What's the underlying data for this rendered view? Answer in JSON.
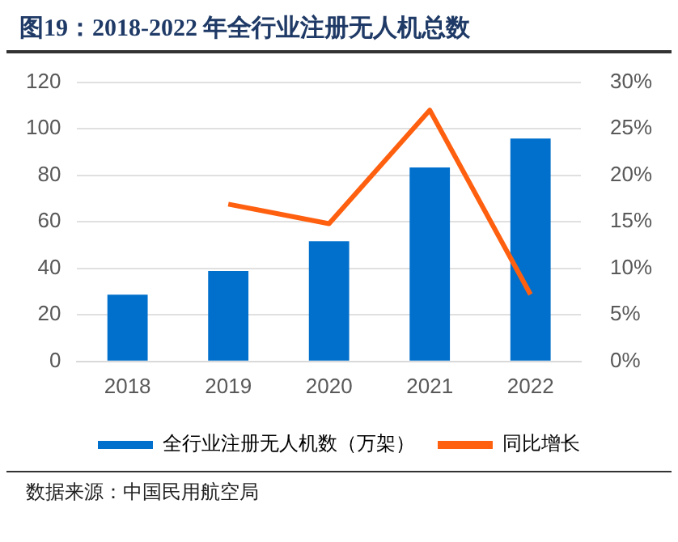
{
  "chart_data": {
    "type": "bar",
    "title": "图19：2018-2022 年全行业注册无人机总数",
    "categories": [
      "2018",
      "2019",
      "2020",
      "2021",
      "2022"
    ],
    "series": [
      {
        "name": "全行业注册无人机数（万架）",
        "color": "#0070cc",
        "values": [
          28.7,
          38.9,
          51.6,
          83.4,
          95.8
        ]
      },
      {
        "name": "同比增长",
        "type": "line",
        "axis": "y2",
        "color": "#ff6010",
        "values": [
          null,
          16.9,
          14.8,
          27.0,
          7.2
        ]
      }
    ],
    "ylim": [
      0,
      120
    ],
    "yticks": [
      0,
      20,
      40,
      60,
      80,
      100,
      120
    ],
    "y2lim": [
      0,
      30
    ],
    "y2ticks": [
      {
        "value": 0,
        "label": "0%"
      },
      {
        "value": 5,
        "label": "5%"
      },
      {
        "value": 10,
        "label": "10%"
      },
      {
        "value": 15,
        "label": "15%"
      },
      {
        "value": 20,
        "label": "20%"
      },
      {
        "value": 25,
        "label": "25%"
      },
      {
        "value": 30,
        "label": "30%"
      }
    ],
    "grid": "y",
    "legend": "bottom",
    "marker": "none",
    "line_style": "solid",
    "annotations": [
      "数据来源：中国民用航空局"
    ]
  }
}
